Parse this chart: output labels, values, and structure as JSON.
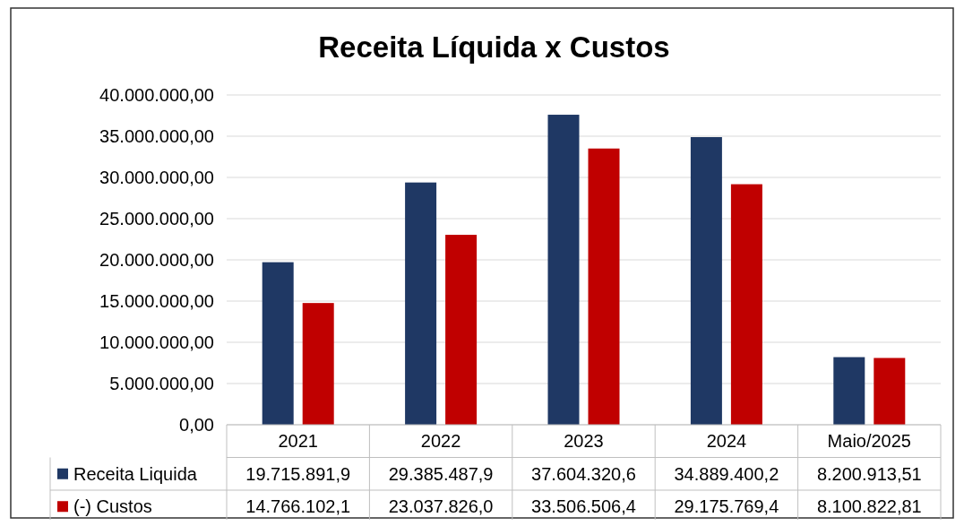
{
  "chart_data": {
    "type": "bar",
    "title": "Receita Líquida x Custos",
    "categories": [
      "2021",
      "2022",
      "2023",
      "2024",
      "Maio/2025"
    ],
    "series": [
      {
        "name": "Receita Liquida",
        "color": "#1f3864",
        "values": [
          19715891.9,
          29385487.9,
          37604320.6,
          34889400.2,
          8200913.51
        ],
        "value_labels": [
          "19.715.891,9",
          "29.385.487,9",
          "37.604.320,6",
          "34.889.400,2",
          "8.200.913,51"
        ]
      },
      {
        "name": "(-) Custos",
        "color": "#c00000",
        "values": [
          14766102.1,
          23037826.0,
          33506506.4,
          29175769.4,
          8100822.81
        ],
        "value_labels": [
          "14.766.102,1",
          "23.037.826,0",
          "33.506.506,4",
          "29.175.769,4",
          "8.100.822,81"
        ]
      }
    ],
    "ylim": [
      0,
      40000000
    ],
    "yticks": [
      {
        "value": 0,
        "label": "0,00"
      },
      {
        "value": 5000000,
        "label": "5.000.000,00"
      },
      {
        "value": 10000000,
        "label": "10.000.000,00"
      },
      {
        "value": 15000000,
        "label": "15.000.000,00"
      },
      {
        "value": 20000000,
        "label": "20.000.000,00"
      },
      {
        "value": 25000000,
        "label": "25.000.000,00"
      },
      {
        "value": 30000000,
        "label": "30.000.000,00"
      },
      {
        "value": 35000000,
        "label": "35.000.000,00"
      },
      {
        "value": 40000000,
        "label": "40.000.000,00"
      }
    ],
    "grid": "y",
    "legend": "bottom"
  }
}
